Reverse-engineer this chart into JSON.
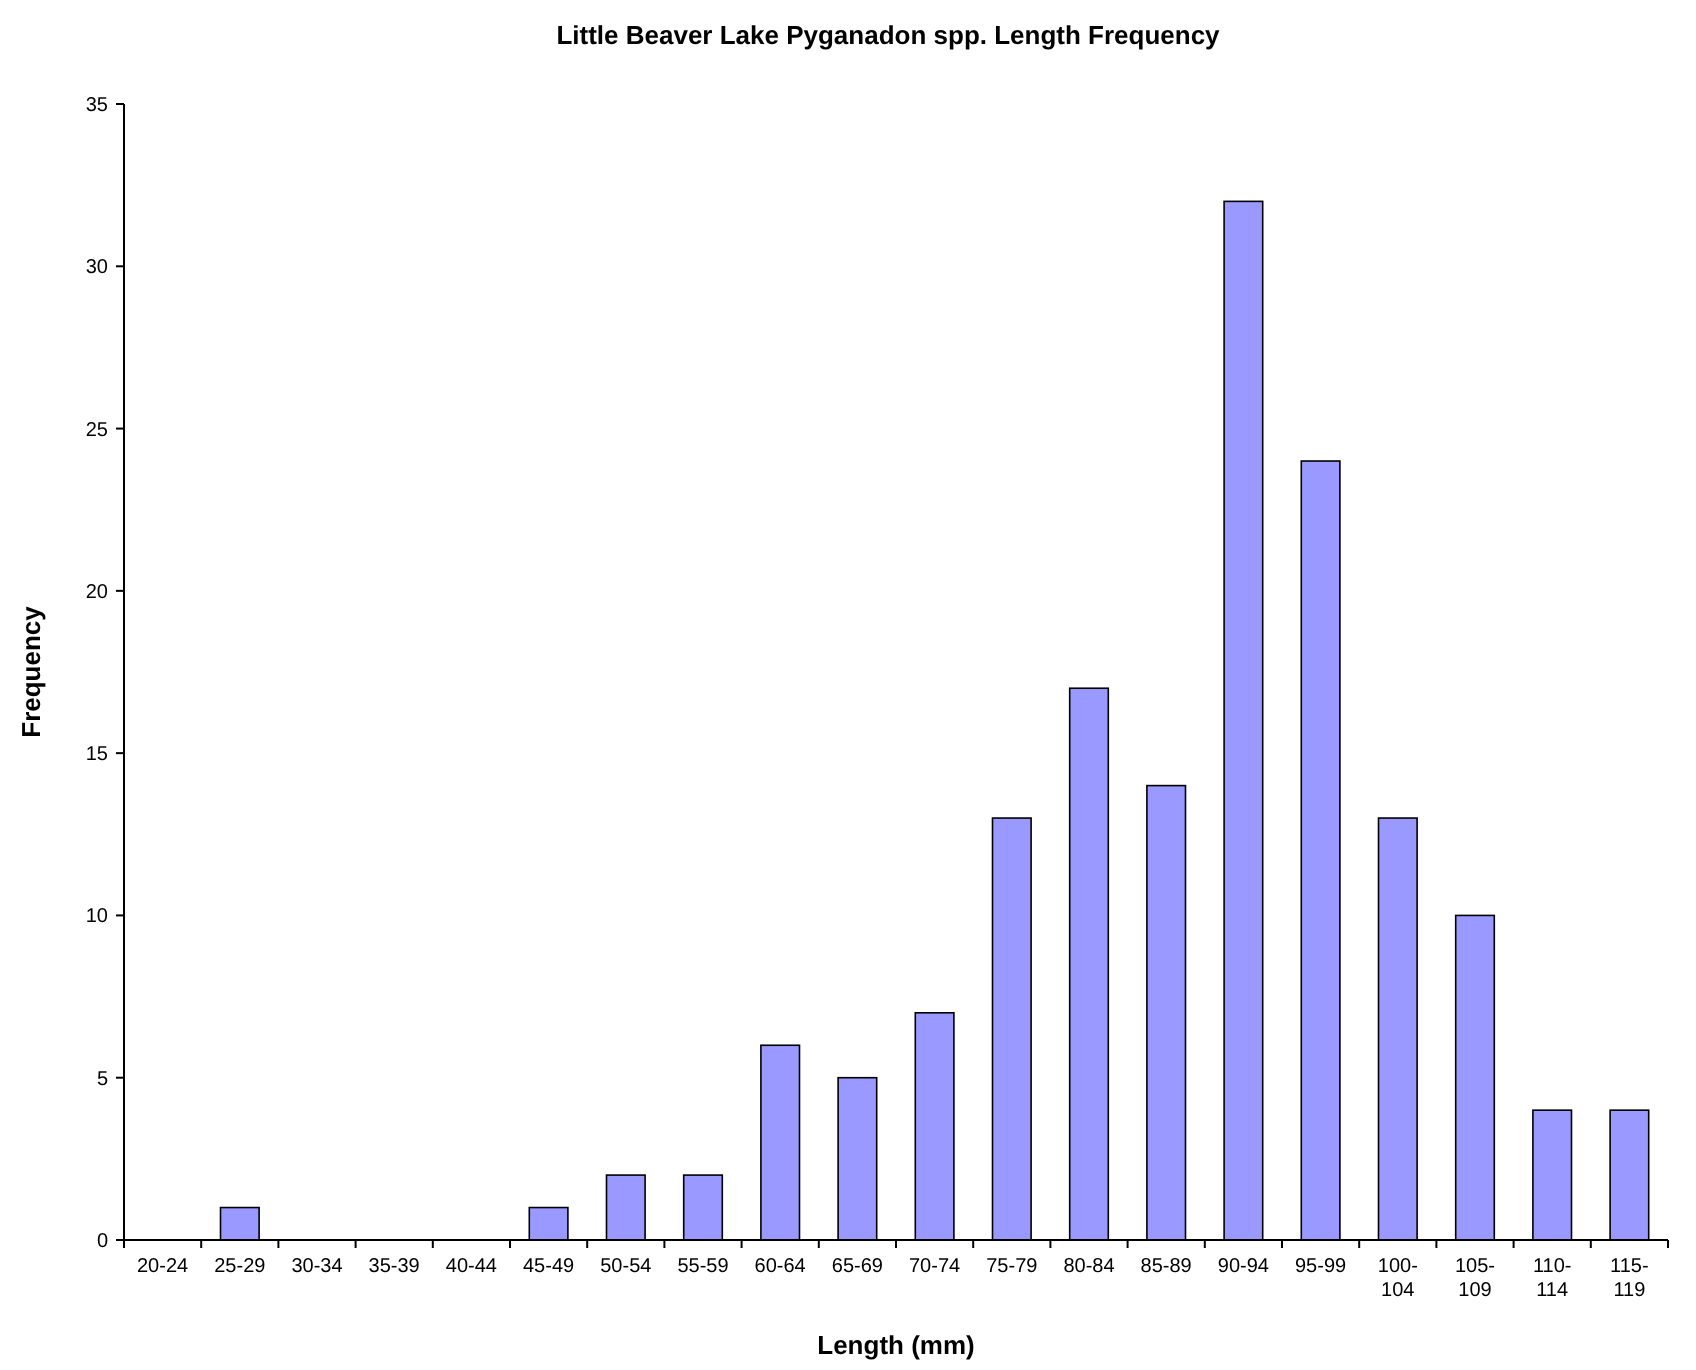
{
  "chart_data": {
    "type": "bar",
    "title": "Little Beaver Lake Pyganadon spp. Length Frequency",
    "xlabel": "Length (mm)",
    "ylabel": "Frequency",
    "categories": [
      "20-24",
      "25-29",
      "30-34",
      "35-39",
      "40-44",
      "45-49",
      "50-54",
      "55-59",
      "60-64",
      "65-69",
      "70-74",
      "75-79",
      "80-84",
      "85-89",
      "90-94",
      "95-99",
      "100-104",
      "105-109",
      "110-114",
      "115-119"
    ],
    "values": [
      0,
      1,
      0,
      0,
      0,
      1,
      2,
      2,
      6,
      5,
      7,
      13,
      17,
      14,
      32,
      24,
      13,
      10,
      4,
      4
    ],
    "color": "#9999ff",
    "ylim": [
      0,
      35
    ],
    "yticks": [
      0,
      5,
      10,
      15,
      20,
      25,
      30,
      35
    ],
    "grid": false
  }
}
